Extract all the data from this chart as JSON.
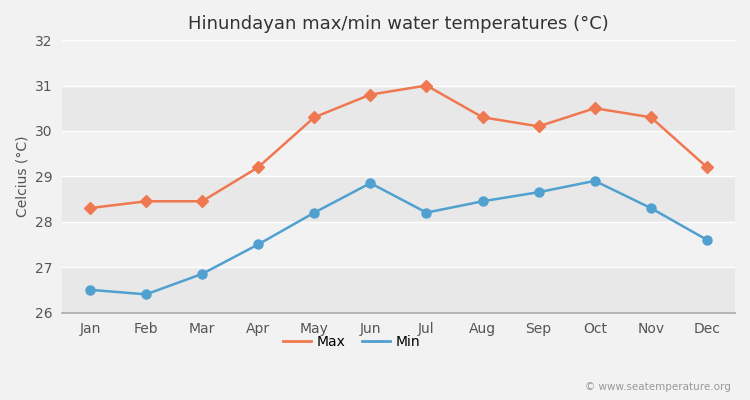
{
  "title": "Hinundayan max/min water temperatures (°C)",
  "ylabel": "Celcius (°C)",
  "months": [
    "Jan",
    "Feb",
    "Mar",
    "Apr",
    "May",
    "Jun",
    "Jul",
    "Aug",
    "Sep",
    "Oct",
    "Nov",
    "Dec"
  ],
  "max_temps": [
    28.3,
    28.45,
    28.45,
    29.2,
    30.3,
    30.8,
    31.0,
    30.3,
    30.1,
    30.5,
    30.3,
    29.2
  ],
  "min_temps": [
    26.5,
    26.4,
    26.85,
    27.5,
    28.2,
    28.85,
    28.2,
    28.45,
    28.65,
    28.9,
    28.3,
    27.6
  ],
  "max_color": "#f07850",
  "min_color": "#50a0d0",
  "bg_color": "#f2f2f2",
  "band_colors": [
    "#e8e8e8",
    "#f2f2f2"
  ],
  "grid_color": "#ffffff",
  "ylim": [
    26,
    32
  ],
  "yticks": [
    26,
    27,
    28,
    29,
    30,
    31,
    32
  ],
  "watermark": "© www.seatemperature.org",
  "title_fontsize": 13,
  "label_fontsize": 10,
  "tick_fontsize": 10
}
